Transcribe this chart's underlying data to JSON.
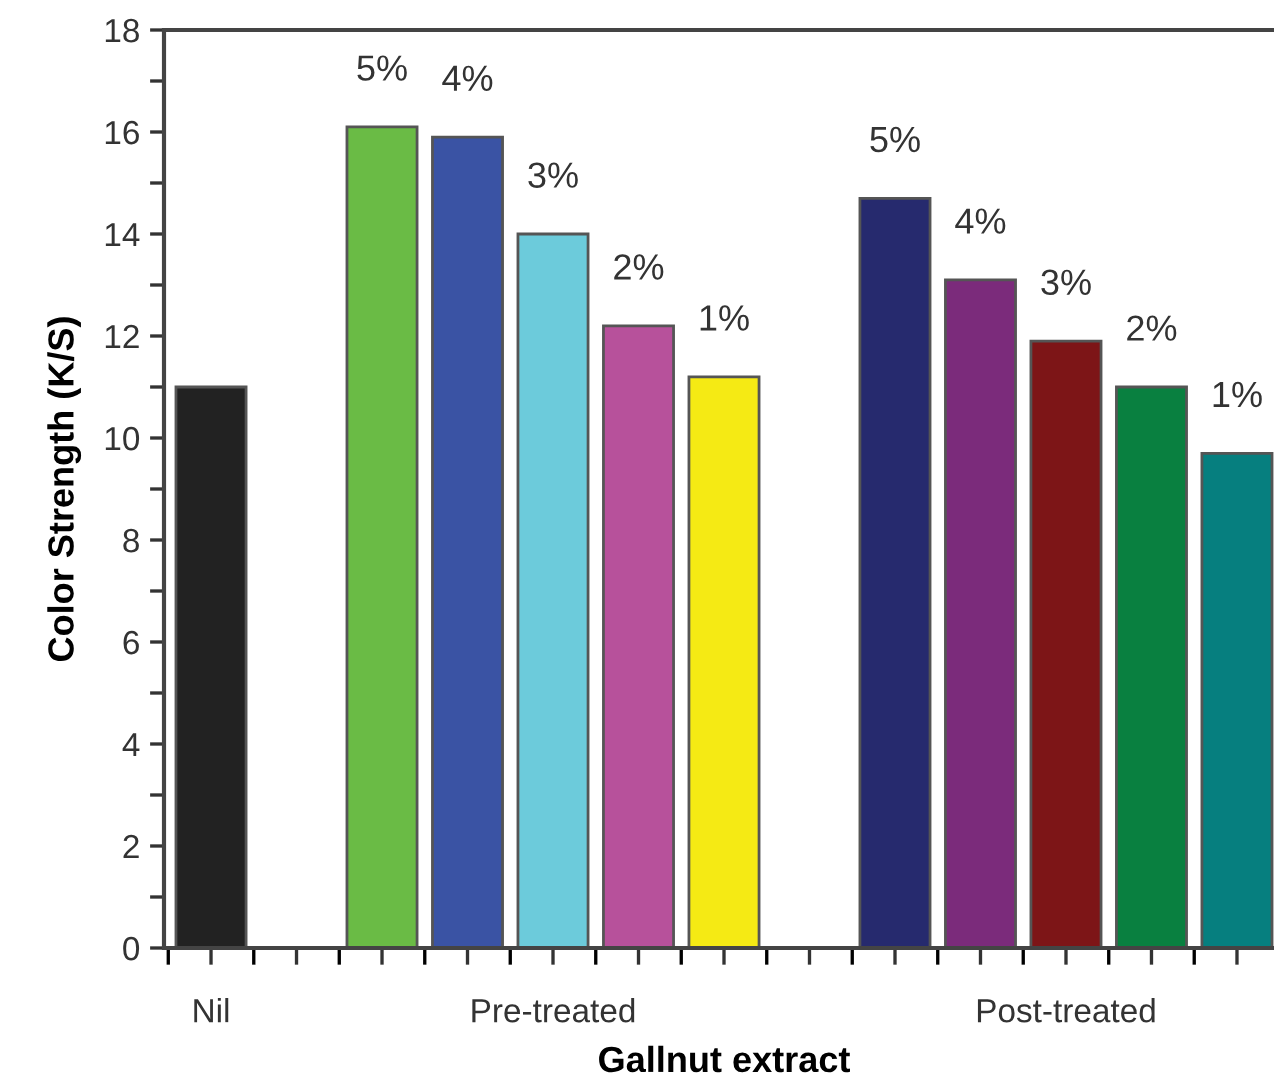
{
  "chart_data": {
    "type": "bar",
    "xlabel": "Gallnut extract",
    "ylabel": "Color Strength (K/S)",
    "categories": [
      "Nil",
      null,
      null,
      null,
      "Pre-treated",
      null,
      null,
      null,
      null,
      null,
      "Post-treated",
      null,
      null
    ],
    "series": [
      {
        "color": "#222222",
        "values": [
          11.0,
          null,
          null,
          null,
          null,
          null,
          null,
          null,
          null,
          null,
          null,
          null,
          null
        ]
      },
      {
        "name": "5%",
        "color": "#6abb45",
        "values": [
          null,
          null,
          16.1,
          null,
          null,
          null,
          null,
          null,
          null,
          null,
          null,
          null,
          null
        ]
      },
      {
        "name": "4%",
        "color": "#3a53a4",
        "values": [
          null,
          null,
          null,
          15.9,
          null,
          null,
          null,
          null,
          null,
          null,
          null,
          null,
          null
        ]
      },
      {
        "name": "3%",
        "color": "#6ccbdb",
        "values": [
          null,
          null,
          null,
          null,
          14.0,
          null,
          null,
          null,
          null,
          null,
          null,
          null,
          null
        ]
      },
      {
        "name": "2%",
        "color": "#b7519b",
        "values": [
          null,
          null,
          null,
          null,
          null,
          12.2,
          null,
          null,
          null,
          null,
          null,
          null,
          null
        ]
      },
      {
        "name": "1%",
        "color": "#f5ea14",
        "values": [
          null,
          null,
          null,
          null,
          null,
          null,
          11.2,
          null,
          null,
          null,
          null,
          null,
          null
        ]
      },
      {
        "name": "5%",
        "color": "#262a6e",
        "values": [
          null,
          null,
          null,
          null,
          null,
          null,
          null,
          null,
          14.7,
          null,
          null,
          null,
          null
        ]
      },
      {
        "name": "4%",
        "color": "#7b2b7b",
        "values": [
          null,
          null,
          null,
          null,
          null,
          null,
          null,
          null,
          null,
          13.1,
          null,
          null,
          null
        ]
      },
      {
        "name": "3%",
        "color": "#7d1517",
        "values": [
          null,
          null,
          null,
          null,
          null,
          null,
          null,
          null,
          null,
          null,
          11.9,
          null,
          null
        ]
      },
      {
        "name": "2%",
        "color": "#098040",
        "values": [
          null,
          null,
          null,
          null,
          null,
          null,
          null,
          null,
          null,
          null,
          null,
          11.0,
          null
        ]
      },
      {
        "name": "1%",
        "color": "#067f7f",
        "values": [
          null,
          null,
          null,
          null,
          null,
          null,
          null,
          null,
          null,
          null,
          null,
          null,
          9.7
        ]
      }
    ],
    "ylim": [
      0,
      18
    ],
    "yticks": [
      0,
      {
        "value": 1,
        "label": null
      },
      2,
      {
        "value": 3,
        "label": null
      },
      4,
      {
        "value": 5,
        "label": null
      },
      6,
      {
        "value": 7,
        "label": null
      },
      8,
      {
        "value": 9,
        "label": null
      },
      10,
      {
        "value": 11,
        "label": null
      },
      12,
      {
        "value": 13,
        "label": null
      },
      14,
      {
        "value": 15,
        "label": null
      },
      16,
      {
        "value": 17,
        "label": null
      },
      18
    ],
    "grid": false,
    "legend": false
  }
}
